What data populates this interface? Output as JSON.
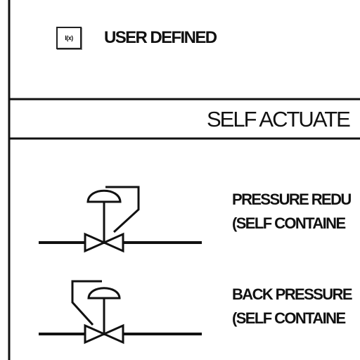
{
  "legend": {
    "user_defined": {
      "box_text": "I(x)",
      "label": "USER DEFINED"
    }
  },
  "section": {
    "header": "SELF ACTUATE"
  },
  "symbols": [
    {
      "name": "pressure-reducing-valve",
      "line1": "PRESSURE REDU",
      "line2": "(SELF CONTAINE"
    },
    {
      "name": "back-pressure-valve",
      "line1": "BACK PRESSURE",
      "line2": "(SELF CONTAINE"
    }
  ],
  "colors": {
    "ink": "#111111",
    "paper": "#ffffff"
  }
}
